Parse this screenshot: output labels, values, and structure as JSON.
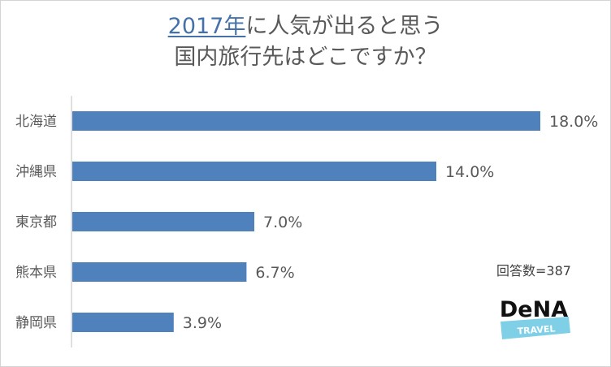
{
  "title": {
    "line1_year": "2017年",
    "line1_rest": "に人気が出ると思う",
    "line2": "国内旅行先はどこですか？"
  },
  "respondents": "回答数=387",
  "logo": {
    "brand": "DeNA",
    "sub": "TRAVEL"
  },
  "colors": {
    "bar": "#4f81bd",
    "title_accent": "#4472a8",
    "text": "#595959",
    "logo_band": "#7fd0e6"
  },
  "chart_data": {
    "type": "bar",
    "orientation": "horizontal",
    "categories": [
      "北海道",
      "沖縄県",
      "東京都",
      "熊本県",
      "静岡県"
    ],
    "values": [
      18.0,
      14.0,
      7.0,
      6.7,
      3.9
    ],
    "value_labels": [
      "18.0%",
      "14.0%",
      "7.0%",
      "6.7%",
      "3.9%"
    ],
    "unit": "%",
    "xlim": [
      0,
      18.0
    ],
    "grid": false
  }
}
